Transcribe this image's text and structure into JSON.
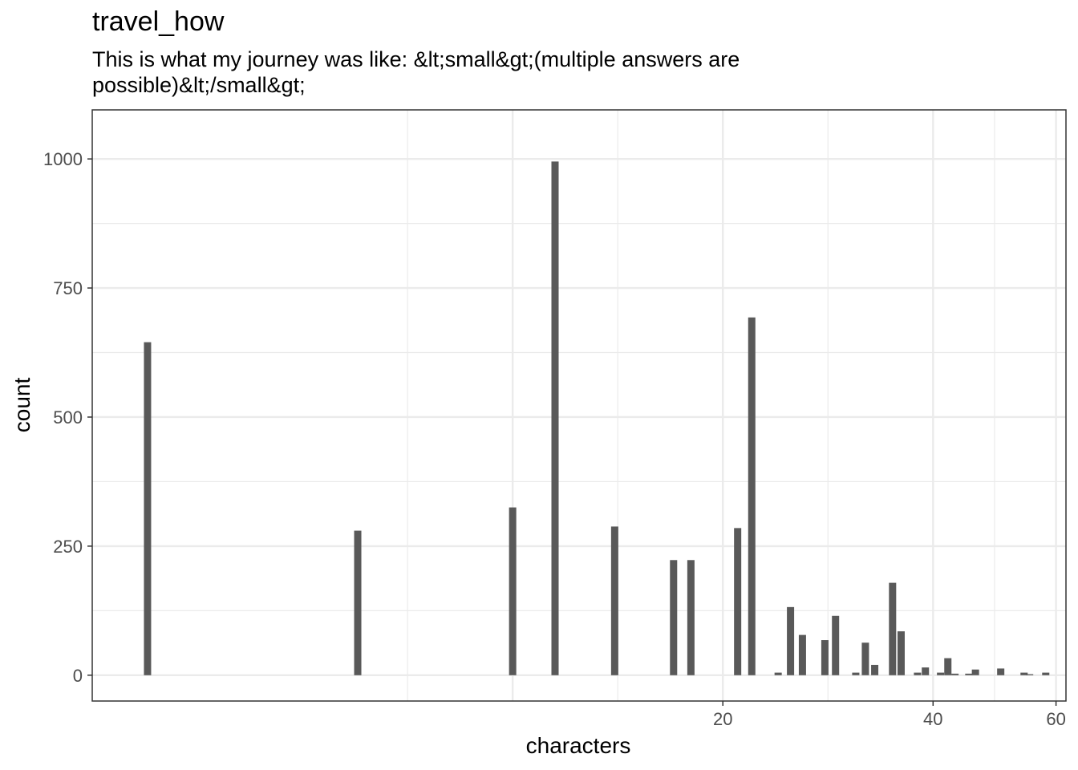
{
  "chart_data": {
    "type": "bar",
    "title": "travel_how",
    "subtitle": "This is what my journey was like: &lt;small&gt;(multiple answers are possible)&lt;/small&gt;",
    "xlabel": "characters",
    "ylabel": "count",
    "x_scale": "log10",
    "xlim": [
      2.5,
      62
    ],
    "ylim": [
      -50,
      1095
    ],
    "x_ticks": [
      20,
      40,
      60
    ],
    "y_ticks": [
      0,
      250,
      500,
      750,
      1000
    ],
    "x_tick_labels": [
      "20",
      "40",
      "60"
    ],
    "y_tick_labels": [
      "0",
      "250",
      "500",
      "750",
      "1000"
    ],
    "grid": true,
    "bar_color": "#595959",
    "bars": [
      {
        "x": 3,
        "value": 645
      },
      {
        "x": 6,
        "value": 280
      },
      {
        "x": 10,
        "value": 325
      },
      {
        "x": 11.5,
        "value": 995
      },
      {
        "x": 14,
        "value": 288
      },
      {
        "x": 17,
        "value": 223
      },
      {
        "x": 18,
        "value": 223
      },
      {
        "x": 21,
        "value": 285
      },
      {
        "x": 22,
        "value": 693
      },
      {
        "x": 24,
        "value": 5
      },
      {
        "x": 25,
        "value": 132
      },
      {
        "x": 26,
        "value": 78
      },
      {
        "x": 28,
        "value": 68
      },
      {
        "x": 29,
        "value": 115
      },
      {
        "x": 31,
        "value": 5
      },
      {
        "x": 32,
        "value": 63
      },
      {
        "x": 33,
        "value": 20
      },
      {
        "x": 35,
        "value": 179
      },
      {
        "x": 36,
        "value": 85
      },
      {
        "x": 38,
        "value": 5
      },
      {
        "x": 39,
        "value": 15
      },
      {
        "x": 41,
        "value": 5
      },
      {
        "x": 42,
        "value": 33
      },
      {
        "x": 43,
        "value": 3
      },
      {
        "x": 45,
        "value": 3
      },
      {
        "x": 46,
        "value": 11
      },
      {
        "x": 50,
        "value": 13
      },
      {
        "x": 54,
        "value": 5
      },
      {
        "x": 55,
        "value": 2
      },
      {
        "x": 58,
        "value": 5
      }
    ]
  }
}
